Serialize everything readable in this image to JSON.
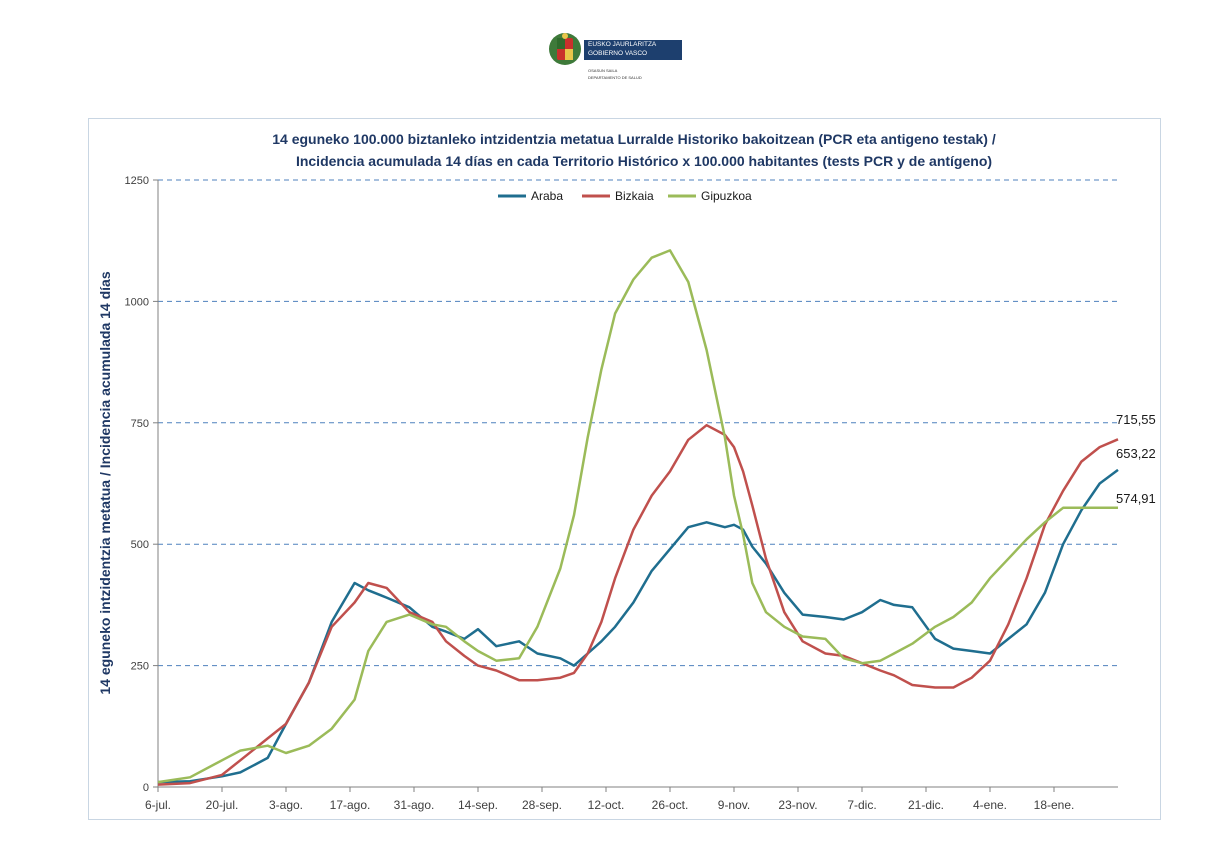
{
  "header": {
    "logo_line1": "EUSKO JAURLARITZA",
    "logo_line2": "GOBIERNO VASCO",
    "logo_sub1": "OSASUN SAILA",
    "logo_sub2": "DEPARTAMENTO DE SALUD"
  },
  "chart_data": {
    "type": "line",
    "title": "14 eguneko 100.000 biztanleko intzidentzia metatua Lurralde Historiko bakoitzean (PCR eta antigeno  testak) /",
    "subtitle": "Incidencia  acumulada  14 días en cada Territorio Histórico x 100.000 habitantes (tests PCR y de antígeno)",
    "ylabel": "14 eguneko intzidentzia metatua / Incidencia acumulada 14 días",
    "xlabel": "",
    "ylim": [
      0,
      1250
    ],
    "yticks": [
      "0",
      "250",
      "500",
      "750",
      "1000",
      "1250"
    ],
    "ytick_values": [
      0,
      250,
      500,
      750,
      1000,
      1250
    ],
    "xticks": [
      "6-jul.",
      "20-jul.",
      "3-ago.",
      "17-ago.",
      "31-ago.",
      "14-sep.",
      "28-sep.",
      "12-oct.",
      "26-oct.",
      "9-nov.",
      "23-nov.",
      "7-dic.",
      "21-dic.",
      "4-ene.",
      "18-ene."
    ],
    "xtick_days": [
      0,
      14,
      28,
      42,
      56,
      70,
      84,
      98,
      112,
      126,
      140,
      154,
      168,
      182,
      196
    ],
    "x_range_days": [
      0,
      210
    ],
    "grid": "horizontal dashed",
    "legend_position": "top-center",
    "x": [
      0,
      7,
      14,
      18,
      24,
      28,
      33,
      38,
      43,
      46,
      50,
      55,
      60,
      63,
      67,
      70,
      74,
      79,
      83,
      88,
      91,
      94,
      97,
      100,
      104,
      108,
      112,
      116,
      120,
      124,
      126,
      128,
      130,
      133,
      137,
      141,
      146,
      150,
      154,
      158,
      161,
      165,
      170,
      174,
      178,
      182,
      186,
      190,
      194,
      198,
      202,
      206,
      210
    ],
    "series": [
      {
        "name": "Araba",
        "color": "#1f6e8f",
        "values": [
          10,
          12,
          22,
          30,
          60,
          130,
          215,
          340,
          420,
          405,
          390,
          370,
          330,
          320,
          305,
          325,
          290,
          300,
          275,
          265,
          250,
          275,
          300,
          330,
          380,
          445,
          490,
          535,
          545,
          535,
          540,
          530,
          495,
          460,
          400,
          355,
          350,
          345,
          360,
          385,
          375,
          370,
          305,
          285,
          280,
          275,
          305,
          335,
          400,
          500,
          570,
          625,
          653
        ]
      },
      {
        "name": "Bizkaia",
        "color": "#c0504d",
        "values": [
          5,
          8,
          25,
          55,
          100,
          130,
          215,
          330,
          380,
          420,
          410,
          360,
          340,
          300,
          270,
          250,
          240,
          220,
          220,
          225,
          235,
          275,
          340,
          430,
          530,
          600,
          650,
          715,
          745,
          725,
          700,
          650,
          580,
          470,
          360,
          300,
          275,
          270,
          255,
          240,
          230,
          210,
          205,
          205,
          225,
          260,
          335,
          430,
          540,
          610,
          670,
          700,
          716
        ]
      },
      {
        "name": "Gipuzkoa",
        "color": "#9bbb59",
        "values": [
          10,
          20,
          55,
          75,
          85,
          70,
          85,
          120,
          180,
          280,
          340,
          355,
          335,
          330,
          300,
          280,
          260,
          265,
          330,
          450,
          560,
          720,
          860,
          975,
          1045,
          1090,
          1105,
          1040,
          900,
          720,
          600,
          520,
          420,
          360,
          330,
          310,
          305,
          265,
          255,
          260,
          275,
          295,
          330,
          350,
          380,
          430,
          470,
          510,
          545,
          575,
          575,
          575,
          575
        ]
      }
    ],
    "end_labels": [
      "715,55",
      "653,22",
      "574,91"
    ]
  }
}
